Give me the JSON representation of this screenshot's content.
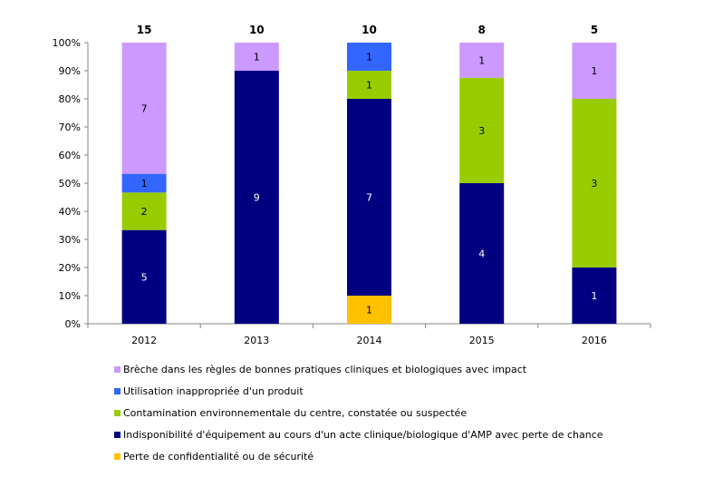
{
  "chart_data": {
    "type": "bar",
    "stacked": "percent",
    "categories": [
      "2012",
      "2013",
      "2014",
      "2015",
      "2016"
    ],
    "totals": [
      15,
      10,
      10,
      8,
      5
    ],
    "series": [
      {
        "name": "Perte de confidentialité ou de sécurité",
        "color": "#FFC000",
        "values": [
          0,
          0,
          1,
          0,
          0
        ]
      },
      {
        "name": "Indisponibilité d'équipement au cours d'un acte clinique/biologique d'AMP avec perte de chance",
        "color": "#000080",
        "values": [
          5,
          9,
          7,
          4,
          1
        ]
      },
      {
        "name": "Contamination environnementale du centre, constatée ou suspectée",
        "color": "#99CC00",
        "values": [
          2,
          0,
          1,
          3,
          3
        ]
      },
      {
        "name": "Utilisation inappropriée d'un produit",
        "color": "#3366FF",
        "values": [
          1,
          0,
          1,
          0,
          0
        ]
      },
      {
        "name": "Brèche dans les règles de bonnes pratiques cliniques et biologiques avec impact",
        "color": "#CC99FF",
        "values": [
          7,
          1,
          0,
          1,
          1
        ]
      }
    ],
    "legend_order": [
      4,
      3,
      2,
      1,
      0
    ],
    "yticks": [
      "0%",
      "10%",
      "20%",
      "30%",
      "40%",
      "50%",
      "60%",
      "70%",
      "80%",
      "90%",
      "100%"
    ],
    "ylim": [
      0,
      100
    ],
    "grid": false,
    "legend_position": "bottom"
  }
}
